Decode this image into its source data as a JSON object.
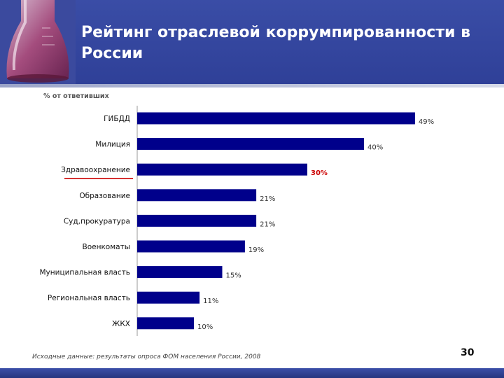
{
  "slide": {
    "title": "Рейтинг отраслевой коррумпированности в России",
    "source": "Исходные данные: результаты опроса ФОМ населения России, 2008",
    "page_number": "30"
  },
  "colors": {
    "header": "#2f4098",
    "bar": "#00008b",
    "highlight": "#cc0000",
    "label": "#111111"
  },
  "chart_data": {
    "type": "bar",
    "orientation": "horizontal",
    "subtitle": "% от ответивших",
    "categories": [
      "ГИБДД",
      "Милиция",
      "Здравоохранение",
      "Образование",
      "Суд,прокуратура",
      "Военкоматы",
      "Муниципальная власть",
      "Региональная власть",
      "ЖКХ"
    ],
    "values": [
      49,
      40,
      30,
      21,
      21,
      19,
      15,
      11,
      10
    ],
    "value_labels": [
      "49%",
      "40%",
      "30%",
      "21%",
      "21%",
      "19%",
      "15%",
      "11%",
      "10%"
    ],
    "highlighted_category": "Здравоохранение",
    "xlim": [
      0,
      50
    ],
    "grid": false,
    "legend": "none"
  }
}
